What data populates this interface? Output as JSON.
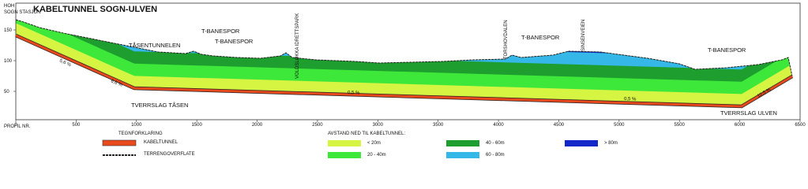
{
  "header": {
    "title": "KABELTUNNEL SOGN-ULVEN",
    "y_axis_label": "HOH",
    "start_label": "SOGN STASJON",
    "x_axis_label": "PROFIL NR."
  },
  "x_ticks": [
    0,
    500,
    1000,
    1500,
    2000,
    2500,
    3000,
    3500,
    4000,
    4500,
    5000,
    5500,
    6000,
    6500
  ],
  "y_ticks": [
    50,
    100,
    150
  ],
  "annotations": [
    "TÅSENTUNNELEN",
    "T-BANESPOR",
    "T-BANESPOR",
    "VOLDSLØKKA IDRETTSPARK",
    "TORSHOVDALEN",
    "T-BANESPOR",
    "SINSENVEIEN",
    "T-BANESPOR",
    "TVERRSLAG TÅSEN",
    "TVERRSLAG ULVEN"
  ],
  "gradients": [
    "5,6 %",
    "6,6 %",
    "0,5 %",
    "0,5 %",
    "10,5 %"
  ],
  "legend": {
    "title": "TEGNFORKLARING",
    "items": [
      "KABELTUNNEL",
      "TERRENGOVERFLATE"
    ],
    "depth_title": "AVSTAND NED TIL KABELTUNNEL:",
    "depth_items": [
      "< 20m",
      "20 - 40m",
      "40 - 60m",
      "60 - 80m",
      "> 80m"
    ]
  }
}
